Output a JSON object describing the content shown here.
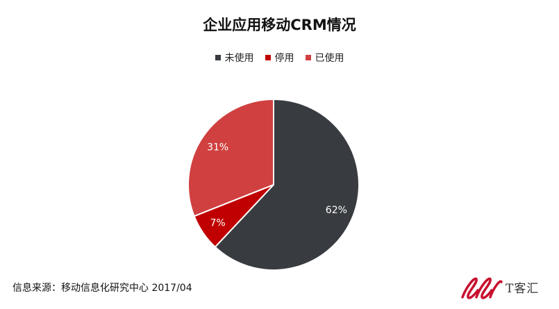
{
  "chart_data": {
    "type": "pie",
    "title": "企业应用移动CRM情况",
    "slices": [
      {
        "label": "未使用",
        "value": 62,
        "display": "62%",
        "color": "#383c40"
      },
      {
        "label": "停用",
        "value": 7,
        "display": "7%",
        "color": "#c00000"
      },
      {
        "label": "已使用",
        "value": 31,
        "display": "31%",
        "color": "#d04040"
      }
    ],
    "legend_position": "top-center"
  },
  "source": "信息来源：移动信息化研究中心 2017/04",
  "watermark": {
    "text": "T客汇",
    "brand_color": "#c8102e"
  }
}
